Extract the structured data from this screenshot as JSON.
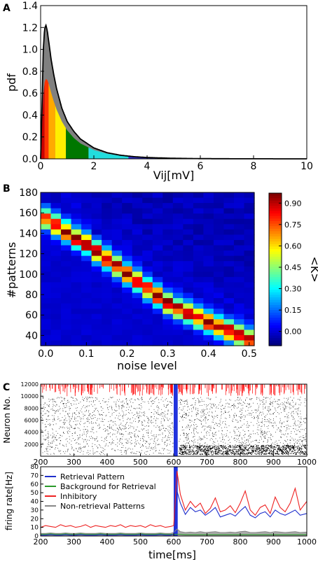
{
  "chart_data": [
    {
      "panel": "A",
      "type": "area",
      "xlabel": "Vij[mV]",
      "ylabel": "pdf",
      "xlim": [
        0,
        10
      ],
      "ylim": [
        0,
        1.4
      ],
      "x_ticks": [
        "0",
        "2",
        "4",
        "6",
        "8",
        "10"
      ],
      "y_ticks": [
        "0.0",
        "0.2",
        "0.4",
        "0.6",
        "0.8",
        "1.0",
        "1.2",
        "1.4"
      ],
      "series": [
        {
          "name": "",
          "color": "#000000",
          "x": [
            0,
            0.05,
            0.1,
            0.15,
            0.2,
            0.25,
            0.3,
            0.4,
            0.5,
            0.6,
            0.8,
            1.0,
            1.25,
            1.5,
            2.0,
            2.5,
            3.0,
            3.5,
            4.0,
            5.0,
            6.0,
            7.0,
            8.0,
            10.0
          ],
          "y": [
            0,
            0.45,
            1.0,
            1.19,
            1.22,
            1.17,
            1.08,
            0.9,
            0.76,
            0.64,
            0.46,
            0.34,
            0.25,
            0.18,
            0.1,
            0.056,
            0.033,
            0.02,
            0.012,
            0.005,
            0.002,
            0.001,
            0.0005,
            0
          ]
        },
        {
          "name": "",
          "color": "#808080",
          "x": [
            0,
            0.05,
            0.1,
            0.15,
            0.2,
            0.25,
            0.3,
            0.4,
            0.5,
            0.6,
            0.8,
            1.0,
            1.25,
            1.5,
            2.0,
            2.5,
            3.0,
            3.5,
            4.0,
            5.0,
            6.0,
            7.0,
            8.0,
            10.0
          ],
          "y": [
            0,
            0.28,
            0.58,
            0.7,
            0.73,
            0.72,
            0.69,
            0.6,
            0.52,
            0.45,
            0.34,
            0.26,
            0.19,
            0.14,
            0.08,
            0.047,
            0.028,
            0.017,
            0.01,
            0.004,
            0.0015,
            0.0008,
            0.0004,
            0
          ]
        }
      ],
      "fill_bands": [
        {
          "x0": 0,
          "x1": 0.15,
          "color": "#cc0000"
        },
        {
          "x0": 0.15,
          "x1": 0.3,
          "color": "#ff3300"
        },
        {
          "x0": 0.3,
          "x1": 0.55,
          "color": "#ffaa00"
        },
        {
          "x0": 0.55,
          "x1": 0.95,
          "color": "#ffee00"
        },
        {
          "x0": 0.95,
          "x1": 1.8,
          "color": "#007700"
        },
        {
          "x0": 1.8,
          "x1": 3.3,
          "color": "#22dddd"
        },
        {
          "x0": 3.3,
          "x1": 10,
          "color": "#3333cc"
        }
      ]
    },
    {
      "panel": "B",
      "type": "heatmap",
      "xlabel": "noise level",
      "ylabel": "#patterns",
      "colorbar_label": "<K>",
      "x": [
        0.0,
        0.025,
        0.05,
        0.075,
        0.1,
        0.125,
        0.15,
        0.175,
        0.2,
        0.225,
        0.25,
        0.275,
        0.3,
        0.325,
        0.35,
        0.375,
        0.4,
        0.425,
        0.45,
        0.475,
        0.5
      ],
      "y": [
        175,
        170,
        165,
        160,
        155,
        150,
        145,
        140,
        135,
        130,
        125,
        120,
        115,
        110,
        105,
        100,
        95,
        90,
        85,
        80,
        75,
        70,
        65,
        60,
        55,
        50,
        45,
        40,
        35
      ],
      "x_ticks": [
        "0.0",
        "0.1",
        "0.2",
        "0.3",
        "0.4",
        "0.5"
      ],
      "y_ticks": [
        "180",
        "160",
        "140",
        "120",
        "100",
        "80",
        "60",
        "40"
      ],
      "colorbar_ticks": [
        "0.90",
        "0.75",
        "0.60",
        "0.45",
        "0.30",
        "0.15",
        "0.00"
      ],
      "zlim": [
        -0.1,
        0.97
      ],
      "ridge": {
        "x": [
          0.0,
          0.1,
          0.2,
          0.3,
          0.4,
          0.5
        ],
        "y": [
          152,
          128,
          100,
          72,
          54,
          38
        ]
      },
      "peak_value": 0.95
    },
    {
      "panel": "C",
      "type": "scatter",
      "ylabel": "Neuron No.",
      "xlim": [
        200,
        1000
      ],
      "ylim": [
        0,
        12000
      ],
      "x_ticks": [
        "200",
        "300",
        "400",
        "500",
        "600",
        "700",
        "800",
        "900",
        "1000"
      ],
      "y_ticks": [
        "12000",
        "10000",
        "8000",
        "6000",
        "4000",
        "2000"
      ],
      "colors": {
        "excitatory": "#000000",
        "inhibitory": "#ff0000",
        "stimulus": "#2233dd"
      },
      "stimulus_window": [
        600,
        612
      ]
    },
    {
      "panel": "C2",
      "type": "line",
      "xlabel": "time[ms]",
      "ylabel": "firing rate[Hz]",
      "xlim": [
        200,
        1000
      ],
      "ylim": [
        0,
        80
      ],
      "x_ticks": [
        "200",
        "300",
        "400",
        "500",
        "600",
        "700",
        "800",
        "900",
        "1000"
      ],
      "y_ticks": [
        "0",
        "10",
        "20",
        "30",
        "40",
        "50",
        "60",
        "70",
        "80"
      ],
      "categories_x": [
        200,
        215,
        230,
        245,
        260,
        275,
        290,
        305,
        320,
        335,
        350,
        365,
        380,
        395,
        410,
        425,
        440,
        455,
        470,
        485,
        500,
        515,
        530,
        545,
        560,
        575,
        590,
        600,
        610,
        620,
        635,
        650,
        665,
        680,
        695,
        710,
        725,
        740,
        755,
        770,
        785,
        800,
        815,
        830,
        845,
        860,
        875,
        890,
        905,
        920,
        935,
        950,
        965,
        980,
        1000
      ],
      "series": [
        {
          "name": "Retrieval Pattern",
          "color": "#1f2fcc",
          "y": [
            1,
            1,
            1.5,
            1,
            1,
            1.5,
            1,
            1,
            1.5,
            1,
            1,
            1,
            1.5,
            1,
            1,
            1,
            1.5,
            1,
            1,
            1,
            1.5,
            1,
            1,
            1,
            1.5,
            1,
            1,
            2,
            52,
            38,
            25,
            33,
            28,
            30,
            24,
            28,
            33,
            22,
            24,
            26,
            23,
            29,
            34,
            24,
            21,
            26,
            28,
            22,
            30,
            26,
            24,
            27,
            30,
            24,
            26
          ]
        },
        {
          "name": "Background for Retrieval",
          "color": "#2a9a2a",
          "y": [
            2,
            2,
            2.5,
            2,
            2,
            2.5,
            2,
            2,
            2.5,
            2,
            2,
            2,
            2.5,
            2,
            2,
            2,
            2.5,
            2,
            2,
            2,
            2.5,
            2,
            2,
            2,
            2.5,
            2,
            2,
            2,
            2,
            2,
            1.5,
            1.5,
            1.5,
            1.5,
            1.5,
            1.5,
            1.5,
            1.5,
            1.5,
            1.5,
            1.5,
            1.5,
            1.5,
            1.5,
            1.5,
            1.5,
            1.5,
            1.5,
            1.5,
            1.5,
            1.5,
            1.5,
            1.5,
            1.5,
            1.5
          ]
        },
        {
          "name": "Inhibitory",
          "color": "#ee2222",
          "y": [
            10,
            12,
            11,
            10,
            13,
            11,
            12,
            10,
            11,
            13,
            10,
            12,
            11,
            10,
            12,
            11,
            13,
            10,
            12,
            11,
            12,
            10,
            13,
            11,
            12,
            10,
            11,
            12,
            75,
            48,
            30,
            40,
            33,
            38,
            26,
            32,
            44,
            28,
            30,
            35,
            27,
            38,
            52,
            30,
            24,
            33,
            36,
            26,
            45,
            33,
            28,
            38,
            55,
            30,
            40
          ]
        },
        {
          "name": "Non-retrieval Patterns",
          "color": "#888888",
          "y": [
            3,
            3,
            3.5,
            3,
            3,
            3.5,
            3,
            3,
            3.5,
            3,
            3,
            3,
            3.5,
            3,
            3,
            3,
            3.5,
            3,
            3,
            3,
            3.5,
            3,
            3,
            3,
            3.5,
            3,
            3,
            4,
            8,
            5,
            4,
            4.5,
            4,
            5,
            4,
            4.5,
            5,
            4,
            4,
            4.5,
            4,
            5,
            5.5,
            4,
            4,
            4.5,
            5,
            4,
            5,
            4.5,
            4,
            4.5,
            5,
            4,
            4.5
          ]
        }
      ],
      "stimulus_window": [
        600,
        612
      ]
    }
  ],
  "panel_labels": {
    "a": "A",
    "b": "B",
    "c": "C"
  }
}
